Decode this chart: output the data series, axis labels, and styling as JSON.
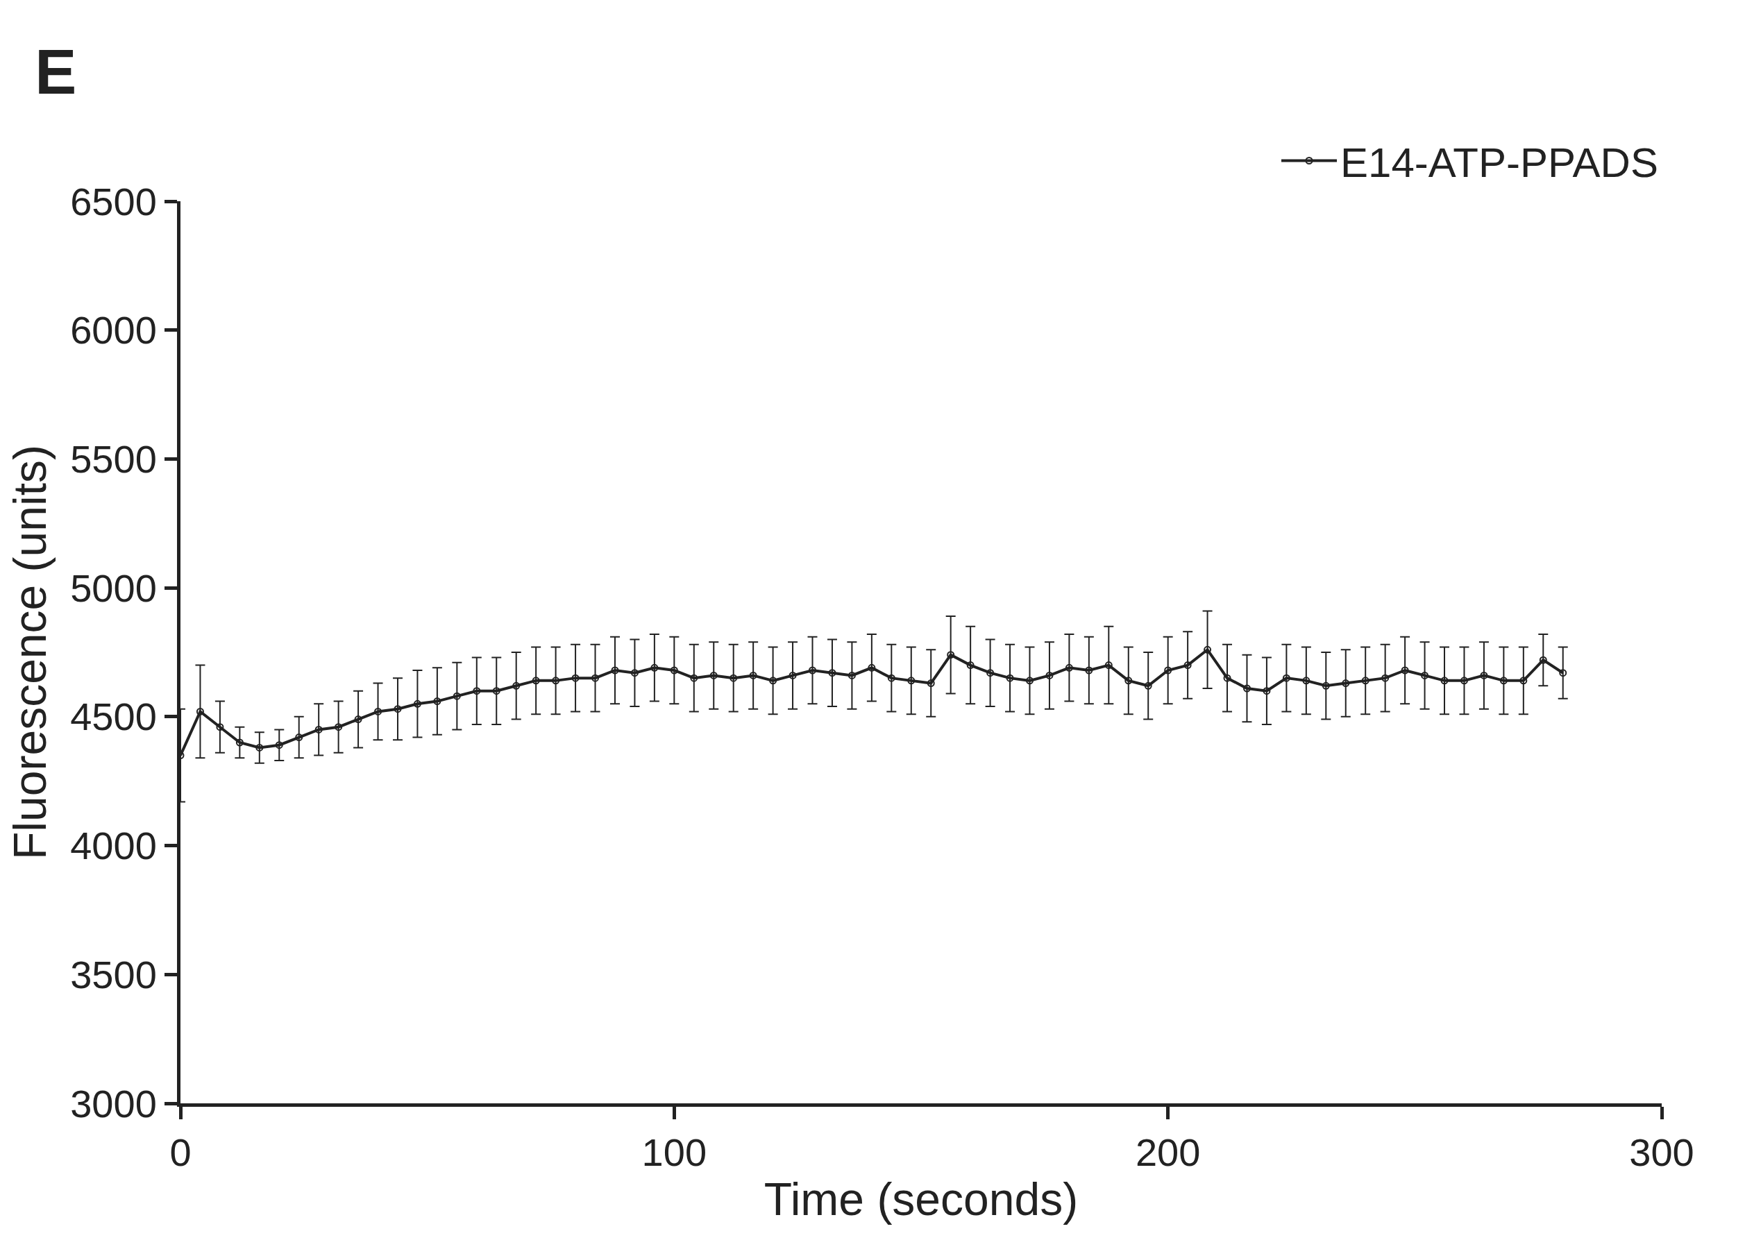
{
  "chart_data": {
    "type": "line",
    "title": "E",
    "xlabel": "Time (seconds)",
    "ylabel": "Fluorescence (units)",
    "x": [
      0,
      4,
      8,
      12,
      16,
      20,
      24,
      28,
      32,
      36,
      40,
      44,
      48,
      52,
      56,
      60,
      64,
      68,
      72,
      76,
      80,
      84,
      88,
      92,
      96,
      100,
      104,
      108,
      112,
      116,
      120,
      124,
      128,
      132,
      136,
      140,
      144,
      148,
      152,
      156,
      160,
      164,
      168,
      172,
      176,
      180,
      184,
      188,
      192,
      196,
      200,
      204,
      208,
      212,
      216,
      220,
      224,
      228,
      232,
      236,
      240,
      244,
      248,
      252,
      256,
      260,
      264,
      268,
      272,
      276,
      280
    ],
    "series": [
      {
        "name": "E14-ATP-PPADS",
        "color": "#222222",
        "values": [
          4350,
          4520,
          4460,
          4400,
          4380,
          4390,
          4420,
          4450,
          4460,
          4490,
          4520,
          4530,
          4550,
          4560,
          4580,
          4600,
          4600,
          4620,
          4640,
          4640,
          4650,
          4650,
          4680,
          4670,
          4690,
          4680,
          4650,
          4660,
          4650,
          4660,
          4640,
          4660,
          4680,
          4670,
          4660,
          4690,
          4650,
          4640,
          4630,
          4740,
          4700,
          4670,
          4650,
          4640,
          4660,
          4690,
          4680,
          4700,
          4640,
          4620,
          4680,
          4700,
          4760,
          4650,
          4610,
          4600,
          4650,
          4640,
          4620,
          4630,
          4640,
          4650,
          4680,
          4660,
          4640,
          4640,
          4660,
          4640,
          4640,
          4720,
          4670
        ],
        "errors": [
          180,
          180,
          100,
          60,
          60,
          60,
          80,
          100,
          100,
          110,
          110,
          120,
          130,
          130,
          130,
          130,
          130,
          130,
          130,
          130,
          130,
          130,
          130,
          130,
          130,
          130,
          130,
          130,
          130,
          130,
          130,
          130,
          130,
          130,
          130,
          130,
          130,
          130,
          130,
          150,
          150,
          130,
          130,
          130,
          130,
          130,
          130,
          150,
          130,
          130,
          130,
          130,
          150,
          130,
          130,
          130,
          130,
          130,
          130,
          130,
          130,
          130,
          130,
          130,
          130,
          130,
          130,
          130,
          130,
          100,
          100
        ]
      }
    ],
    "xlim": [
      0,
      300
    ],
    "xticks": [
      0,
      100,
      200,
      300
    ],
    "ylim": [
      3000,
      6500
    ],
    "yticks": [
      3000,
      3500,
      4000,
      4500,
      5000,
      5500,
      6000,
      6500
    ],
    "marker": "circle",
    "line_style": "solid",
    "legend": "top right"
  }
}
